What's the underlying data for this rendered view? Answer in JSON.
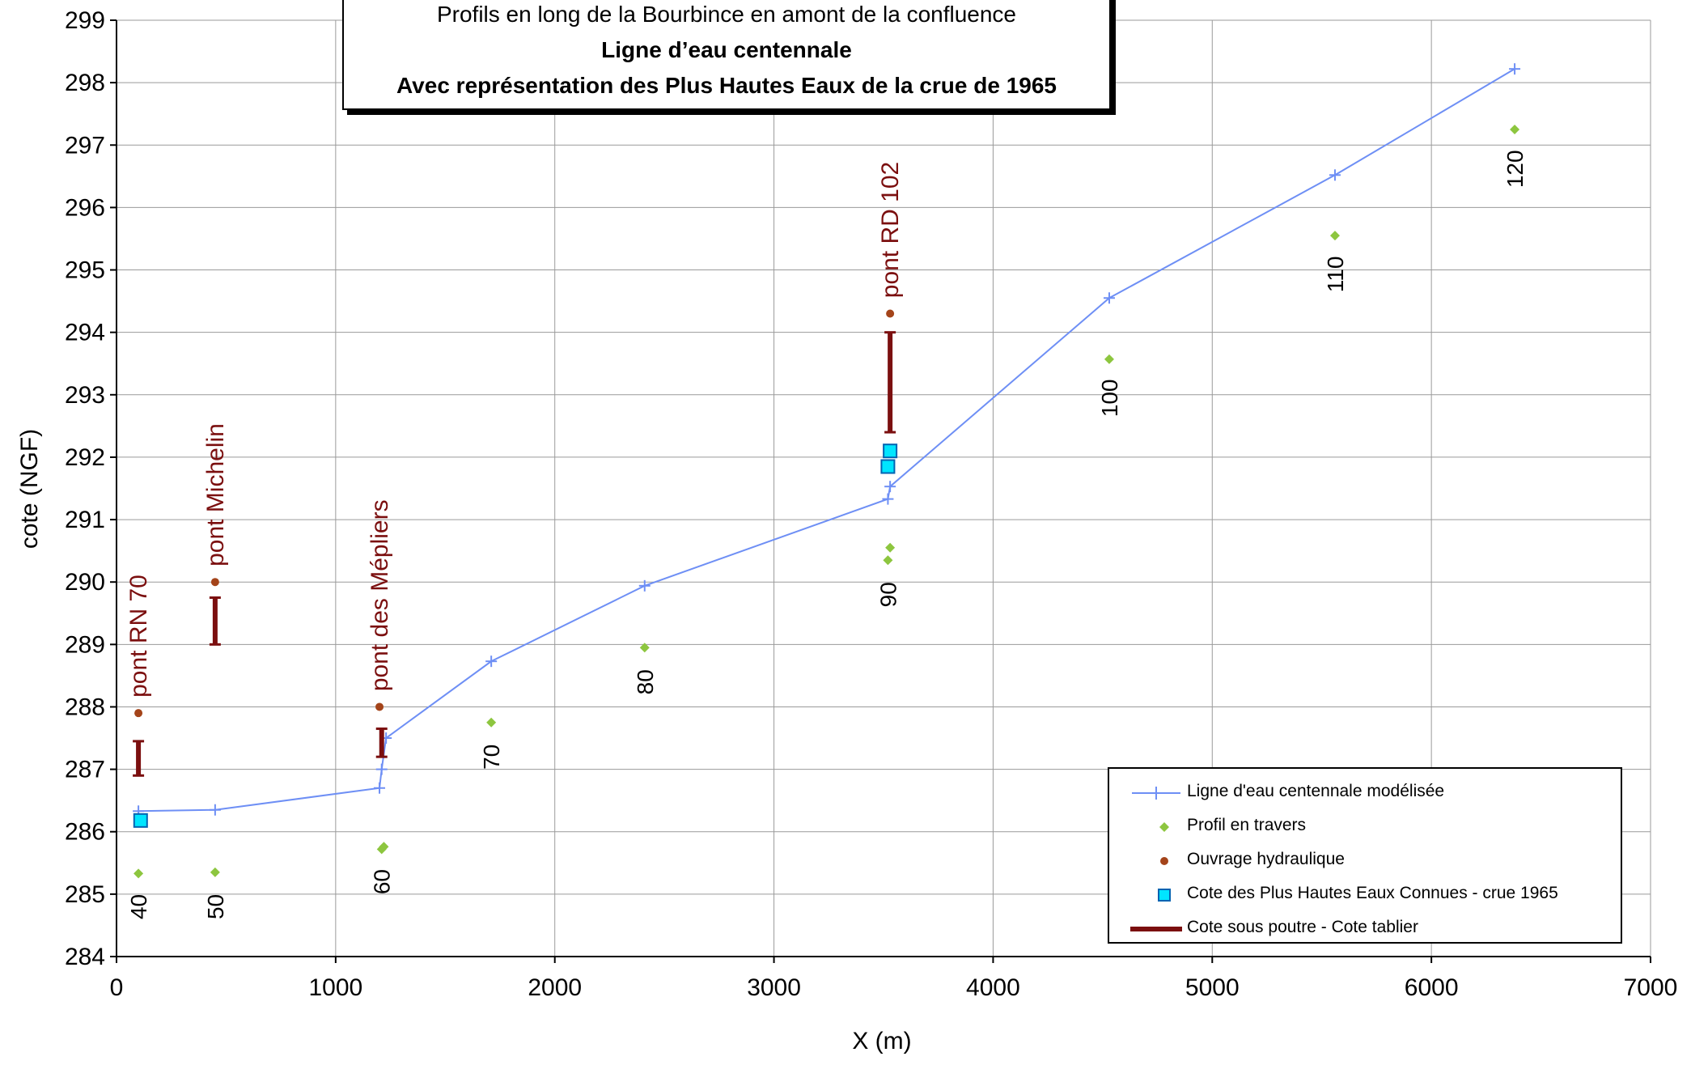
{
  "chart_data": {
    "type": "line",
    "title_lines": [
      "Profils en long de la Bourbince en amont de la confluence",
      "Ligne d’eau centennale",
      "Avec représentation des Plus Hautes Eaux de la crue de 1965"
    ],
    "xlabel": "X (m)",
    "ylabel": "cote (NGF)",
    "xlim": [
      0,
      7000
    ],
    "ylim": [
      284,
      299
    ],
    "xticks": [
      0,
      1000,
      2000,
      3000,
      4000,
      5000,
      6000,
      7000
    ],
    "yticks": [
      284,
      285,
      286,
      287,
      288,
      289,
      290,
      291,
      292,
      293,
      294,
      295,
      296,
      297,
      298,
      299
    ],
    "grid": true,
    "legend_position": "bottom-right",
    "colors": {
      "line": "#6E8FF5",
      "profil": "#8DC63F",
      "ouvrage": "#A4441A",
      "phe_fill": "#00E5FF",
      "phe_stroke": "#0063B1",
      "tablier": "#7B0F0F",
      "label": "#7B0F0F"
    },
    "series": [
      {
        "name": "Ligne d'eau centennale modélisée",
        "kind": "line",
        "x": [
          100,
          450,
          1200,
          1210,
          1230,
          1710,
          2410,
          3520,
          3530,
          4530,
          5560,
          6380
        ],
        "y": [
          286.33,
          286.35,
          286.7,
          287.0,
          287.5,
          288.73,
          289.94,
          291.33,
          291.53,
          294.55,
          296.52,
          298.22
        ]
      },
      {
        "name": "Profil en travers",
        "kind": "points",
        "x": [
          100,
          450,
          1210,
          1220,
          1710,
          2410,
          3520,
          3530,
          4530,
          5560,
          6380
        ],
        "y": [
          285.33,
          285.35,
          285.72,
          285.76,
          287.75,
          288.95,
          290.35,
          290.55,
          293.57,
          295.55,
          297.25
        ]
      },
      {
        "name": "Ouvrage hydraulique",
        "kind": "points",
        "x": [
          100,
          450,
          1200,
          3530
        ],
        "y": [
          287.9,
          290.0,
          288.0,
          294.3
        ]
      },
      {
        "name": "Cote des Plus Hautes Eaux Connues - crue 1965",
        "kind": "points",
        "x": [
          110,
          3530,
          3520
        ],
        "y": [
          286.18,
          292.1,
          291.85
        ]
      },
      {
        "name": "Cote sous poutre - Cote tablier",
        "kind": "ranges",
        "x": [
          100,
          450,
          1210,
          3530
        ],
        "y_low": [
          286.9,
          289.0,
          287.2,
          292.4
        ],
        "y_high": [
          287.45,
          289.75,
          287.65,
          294.0
        ]
      }
    ],
    "profile_labels": [
      {
        "text": "40",
        "x": 100,
        "y": 285.0
      },
      {
        "text": "50",
        "x": 450,
        "y": 285.0
      },
      {
        "text": "60",
        "x": 1210,
        "y": 285.4
      },
      {
        "text": "70",
        "x": 1710,
        "y": 287.4
      },
      {
        "text": "80",
        "x": 2410,
        "y": 288.6
      },
      {
        "text": "90",
        "x": 3520,
        "y": 290.0
      },
      {
        "text": "100",
        "x": 4530,
        "y": 293.25
      },
      {
        "text": "110",
        "x": 5560,
        "y": 295.22
      },
      {
        "text": "120",
        "x": 6380,
        "y": 296.92
      }
    ],
    "structure_labels": [
      {
        "text": "pont RN 70",
        "x": 100,
        "y": 288.15
      },
      {
        "text": "pont Michelin",
        "x": 450,
        "y": 290.25
      },
      {
        "text": "pont des Mépliers",
        "x": 1200,
        "y": 288.25
      },
      {
        "text": "pont RD 102",
        "x": 3530,
        "y": 294.55
      }
    ]
  }
}
